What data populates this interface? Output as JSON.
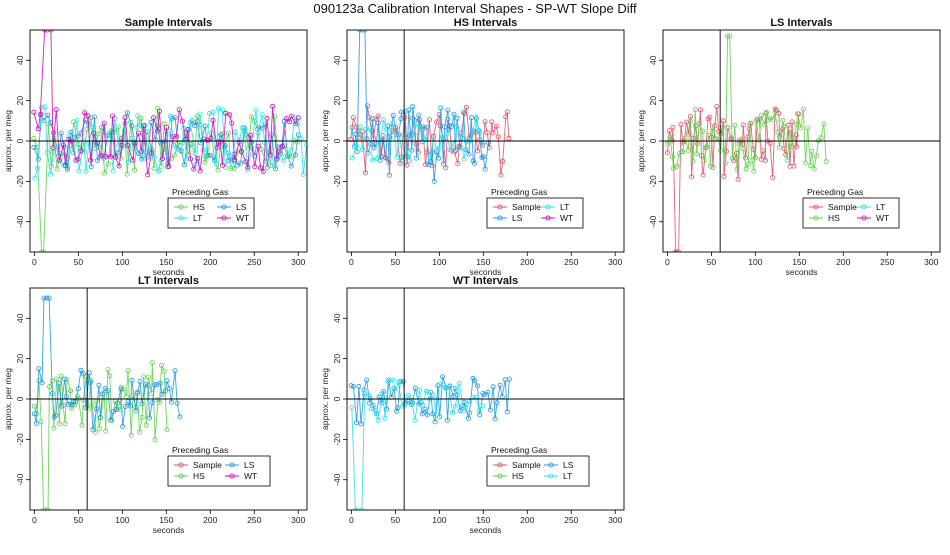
{
  "page": {
    "title": "090123a   Calibration Interval Shapes - SP-WT Slope Diff"
  },
  "colors": {
    "Sample": "#DF536B",
    "HS": "#61D04F",
    "LS": "#2297E6",
    "LT": "#28E2E5",
    "WT": "#CD0BBC"
  },
  "chart_data": [
    {
      "id": "sample",
      "type": "line",
      "title": "Sample Intervals",
      "xlabel": "seconds",
      "ylabel": "approx. per meg",
      "xlim": [
        -5,
        310
      ],
      "ylim": [
        -55,
        55
      ],
      "xticks": [
        0,
        50,
        100,
        150,
        200,
        250,
        300
      ],
      "yticks": [
        -40,
        -20,
        0,
        20,
        40
      ],
      "vline": null,
      "legend": {
        "title": "Preceding Gas",
        "entries": [
          "HS",
          "LS",
          "LT",
          "WT"
        ]
      },
      "series": [
        {
          "name": "HS",
          "x_start": 0,
          "x_end": 300,
          "n": 80,
          "amp": 14,
          "spike": [
            10,
            -55
          ]
        },
        {
          "name": "LS",
          "x_start": 0,
          "x_end": 300,
          "n": 80,
          "amp": 13,
          "spike": null
        },
        {
          "name": "LT",
          "x_start": 0,
          "x_end": 310,
          "n": 85,
          "amp": 15,
          "spike": null
        },
        {
          "name": "WT",
          "x_start": 0,
          "x_end": 300,
          "n": 85,
          "amp": 14,
          "spike": [
            14,
            55
          ]
        }
      ]
    },
    {
      "id": "hs",
      "type": "line",
      "title": "HS Intervals",
      "xlabel": "seconds",
      "ylabel": "approx. per meg",
      "xlim": [
        -5,
        310
      ],
      "ylim": [
        -55,
        55
      ],
      "xticks": [
        0,
        50,
        100,
        150,
        200,
        250,
        300
      ],
      "yticks": [
        -40,
        -20,
        0,
        20,
        40
      ],
      "vline": 60,
      "legend": {
        "title": "Preceding Gas",
        "entries": [
          "Sample",
          "LT",
          "LS",
          "WT"
        ]
      },
      "series": [
        {
          "name": "Sample",
          "x_start": 0,
          "x_end": 180,
          "n": 70,
          "amp": 15,
          "spike": null
        },
        {
          "name": "LS",
          "x_start": 0,
          "x_end": 155,
          "n": 65,
          "amp": 16,
          "spike": [
            12,
            55
          ]
        },
        {
          "name": "LT",
          "x_start": 2,
          "x_end": 150,
          "n": 40,
          "amp": 10,
          "spike": null
        }
      ]
    },
    {
      "id": "ls",
      "type": "line",
      "title": "LS Intervals",
      "xlabel": "seconds",
      "ylabel": "approx. per meg",
      "xlim": [
        -5,
        310
      ],
      "ylim": [
        -55,
        55
      ],
      "xticks": [
        0,
        50,
        100,
        150,
        200,
        250,
        300
      ],
      "yticks": [
        -40,
        -20,
        0,
        20,
        40
      ],
      "vline": 60,
      "legend": {
        "title": "Preceding Gas",
        "entries": [
          "Sample",
          "LT",
          "HS",
          "WT"
        ]
      },
      "series": [
        {
          "name": "Sample",
          "x_start": 0,
          "x_end": 150,
          "n": 70,
          "amp": 15,
          "spike": [
            12,
            -55
          ]
        },
        {
          "name": "HS",
          "x_start": 0,
          "x_end": 180,
          "n": 70,
          "amp": 14,
          "spike": [
            70,
            52
          ]
        }
      ]
    },
    {
      "id": "lt",
      "type": "line",
      "title": "LT Intervals",
      "xlabel": "seconds",
      "ylabel": "approx. per meg",
      "xlim": [
        -5,
        310
      ],
      "ylim": [
        -55,
        55
      ],
      "xticks": [
        0,
        50,
        100,
        150,
        200,
        250,
        300
      ],
      "yticks": [
        -40,
        -20,
        0,
        20,
        40
      ],
      "vline": 60,
      "legend": {
        "title": "Preceding Gas",
        "entries": [
          "Sample",
          "LS",
          "HS",
          "WT"
        ]
      },
      "series": [
        {
          "name": "HS",
          "x_start": 0,
          "x_end": 150,
          "n": 60,
          "amp": 16,
          "spike": [
            12,
            -55
          ]
        },
        {
          "name": "LS",
          "x_start": 0,
          "x_end": 165,
          "n": 60,
          "amp": 13,
          "spike": [
            14,
            50
          ]
        }
      ]
    },
    {
      "id": "wt",
      "type": "line",
      "title": "WT Intervals",
      "xlabel": "seconds",
      "ylabel": "approx. per meg",
      "xlim": [
        -5,
        310
      ],
      "ylim": [
        -55,
        55
      ],
      "xticks": [
        0,
        50,
        100,
        150,
        200,
        250,
        300
      ],
      "yticks": [
        -40,
        -20,
        0,
        20,
        40
      ],
      "vline": 60,
      "legend": {
        "title": "Preceding Gas",
        "entries": [
          "Sample",
          "LS",
          "HS",
          "LT"
        ]
      },
      "series": [
        {
          "name": "LS",
          "x_start": 0,
          "x_end": 180,
          "n": 65,
          "amp": 11,
          "spike": null
        },
        {
          "name": "LT",
          "x_start": 0,
          "x_end": 150,
          "n": 40,
          "amp": 10,
          "spike": [
            8,
            -55
          ]
        }
      ]
    }
  ]
}
